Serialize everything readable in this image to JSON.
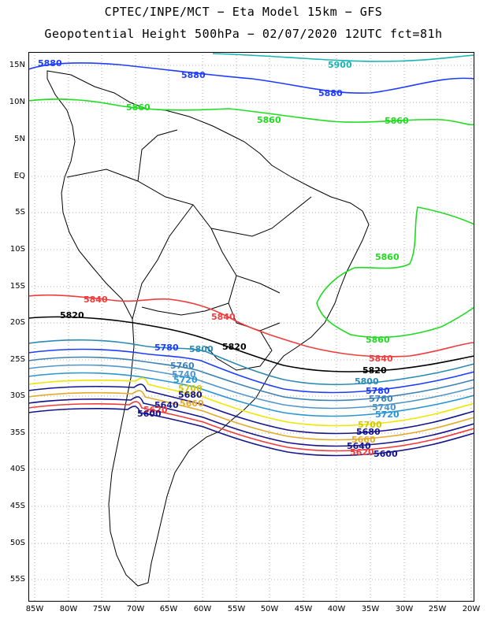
{
  "title": {
    "line1": "CPTEC/INPE/MCT −  Eta Model 15km − GFS",
    "line2": "Geopotential Height 500hPa − 02/07/2020 12UTC fct=81h"
  },
  "lat_labels": [
    "15N",
    "10N",
    "5N",
    "EQ",
    "5S",
    "10S",
    "15S",
    "20S",
    "25S",
    "30S",
    "35S",
    "40S",
    "45S",
    "50S",
    "55S"
  ],
  "lon_labels": [
    "85W",
    "80W",
    "75W",
    "70W",
    "65W",
    "60W",
    "55W",
    "50W",
    "45W",
    "40W",
    "35W",
    "30W",
    "25W",
    "20W"
  ],
  "contour_labels": {
    "c5900": "5900",
    "c5880a": "5880",
    "c5880b": "5880",
    "c5880c": "5880",
    "c5860a": "5860",
    "c5860b": "5860",
    "c5860c": "5860",
    "c5860d": "5860",
    "c5860e": "5860",
    "c5840a": "5840",
    "c5840b": "5840",
    "c5840c": "5840",
    "c5820a": "5820",
    "c5820b": "5820",
    "c5820c": "5820",
    "c5800a": "5800",
    "c5800b": "5800",
    "c5780a": "5780",
    "c5780b": "5780",
    "c5760a": "5760",
    "c5760b": "5760",
    "c5740a": "5740",
    "c5740b": "5740",
    "c5720a": "5720",
    "c5720b": "5720",
    "c5700a": "5700",
    "c5700b": "5700",
    "c5680a": "5680",
    "c5680b": "5680",
    "c5660a": "5660",
    "c5660b": "5660",
    "c5640a": "5640",
    "c5640b": "5640",
    "c5620a": "5620",
    "c5620b": "5620",
    "c5600a": "5600",
    "c5600b": "5600"
  },
  "colors": {
    "c5900": "#19b4b4",
    "c5880": "#1e3cff",
    "c5860": "#1edc1e",
    "c5840": "#f03c3c",
    "c5820": "#000000",
    "c5800": "#2a8cb4",
    "c5780": "#1e3cff",
    "c5760": "#3c82b4",
    "c5740": "#5096c8",
    "c5720": "#2896d2",
    "c5700": "#f0e600",
    "c5680": "#14148c",
    "c5660": "#e6aa28",
    "c5640": "#14148c",
    "c5620": "#f03c3c",
    "c5600": "#14148c"
  }
}
